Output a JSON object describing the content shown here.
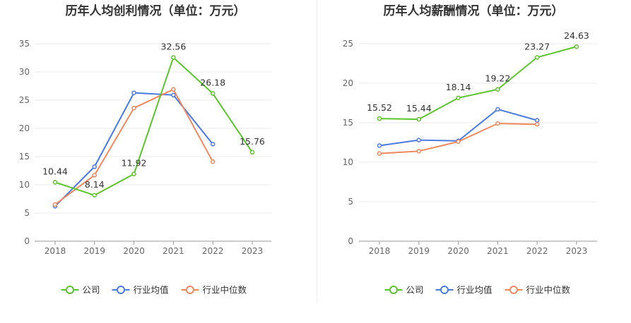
{
  "colors": {
    "company": "#5cc52e",
    "industry_avg": "#4a7be0",
    "industry_median": "#f0885f"
  },
  "legend": [
    {
      "key": "company",
      "label": "公司"
    },
    {
      "key": "industry_avg",
      "label": "行业均值"
    },
    {
      "key": "industry_median",
      "label": "行业中位数"
    }
  ],
  "chart_data": [
    {
      "type": "line",
      "title": "历年人均创利情况（单位：万元）",
      "categories": [
        "2018",
        "2019",
        "2020",
        "2021",
        "2022",
        "2023"
      ],
      "ylim": [
        0,
        35
      ],
      "yticks": [
        0,
        5,
        10,
        15,
        20,
        25,
        30,
        35
      ],
      "grid": true,
      "legend_position": "bottom",
      "series": [
        {
          "key": "company",
          "name": "公司",
          "values": [
            10.44,
            8.14,
            11.92,
            32.56,
            26.18,
            15.76
          ],
          "labels": [
            "10.44",
            "8.14",
            "11.92",
            "32.56",
            "26.18",
            "15.76"
          ]
        },
        {
          "key": "industry_avg",
          "name": "行业均值",
          "values": [
            6.2,
            13.2,
            26.3,
            25.9,
            17.2,
            null
          ]
        },
        {
          "key": "industry_median",
          "name": "行业中位数",
          "values": [
            6.5,
            11.7,
            23.6,
            26.9,
            14.1,
            null
          ]
        }
      ]
    },
    {
      "type": "line",
      "title": "历年人均薪酬情况（单位：万元）",
      "categories": [
        "2018",
        "2019",
        "2020",
        "2021",
        "2022",
        "2023"
      ],
      "ylim": [
        0,
        25
      ],
      "yticks": [
        0,
        5,
        10,
        15,
        20,
        25
      ],
      "grid": true,
      "legend_position": "bottom",
      "series": [
        {
          "key": "company",
          "name": "公司",
          "values": [
            15.52,
            15.44,
            18.14,
            19.22,
            23.27,
            24.63
          ],
          "labels": [
            "15.52",
            "15.44",
            "18.14",
            "19.22",
            "23.27",
            "24.63"
          ]
        },
        {
          "key": "industry_avg",
          "name": "行业均值",
          "values": [
            12.1,
            12.8,
            12.7,
            16.7,
            15.3,
            null
          ]
        },
        {
          "key": "industry_median",
          "name": "行业中位数",
          "values": [
            11.1,
            11.4,
            12.6,
            14.9,
            14.8,
            null
          ]
        }
      ]
    }
  ]
}
